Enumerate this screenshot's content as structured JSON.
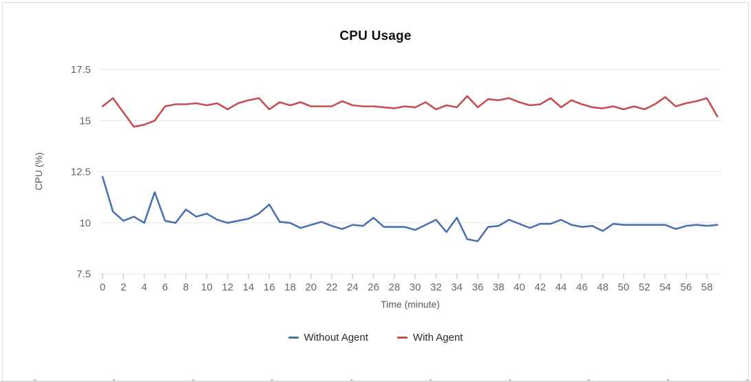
{
  "title": "CPU Usage",
  "axes": {
    "x_label": "Time (minute)",
    "y_label": "CPU (%)"
  },
  "legend": {
    "items": [
      {
        "label": "Without Agent",
        "color": "#4C72B0"
      },
      {
        "label": "With Agent",
        "color": "#C44E52"
      }
    ]
  },
  "colors": {
    "without_agent": "#4C72B0",
    "with_agent": "#C44E52",
    "gridline": "#e5e5e5",
    "axis_tick": "#c8cfdf",
    "tick_label": "#666666"
  },
  "chart_data": {
    "type": "line",
    "title": "CPU Usage",
    "xlabel": "Time (minute)",
    "ylabel": "CPU (%)",
    "xlim": [
      0,
      59
    ],
    "ylim": [
      7.5,
      17.5
    ],
    "y_ticks": [
      17.5,
      15,
      12.5,
      10,
      7.5
    ],
    "x_ticks": [
      0,
      2,
      4,
      6,
      8,
      10,
      12,
      14,
      16,
      18,
      20,
      22,
      24,
      26,
      28,
      30,
      32,
      34,
      36,
      38,
      40,
      42,
      44,
      46,
      48,
      50,
      52,
      54,
      56,
      58
    ],
    "grid": true,
    "legend_position": "bottom",
    "x": [
      0,
      1,
      2,
      3,
      4,
      5,
      6,
      7,
      8,
      9,
      10,
      11,
      12,
      13,
      14,
      15,
      16,
      17,
      18,
      19,
      20,
      21,
      22,
      23,
      24,
      25,
      26,
      27,
      28,
      29,
      30,
      31,
      32,
      33,
      34,
      35,
      36,
      37,
      38,
      39,
      40,
      41,
      42,
      43,
      44,
      45,
      46,
      47,
      48,
      49,
      50,
      51,
      52,
      53,
      54,
      55,
      56,
      57,
      58,
      59
    ],
    "series": [
      {
        "name": "Without Agent",
        "color": "#4C72B0",
        "values": [
          12.25,
          10.55,
          10.1,
          10.3,
          10.0,
          11.5,
          10.1,
          10.0,
          10.65,
          10.3,
          10.45,
          10.15,
          10.0,
          10.1,
          10.2,
          10.45,
          10.9,
          10.05,
          10.0,
          9.75,
          9.9,
          10.05,
          9.85,
          9.7,
          9.9,
          9.85,
          10.25,
          9.8,
          9.8,
          9.8,
          9.65,
          9.9,
          10.15,
          9.55,
          10.25,
          9.2,
          9.1,
          9.8,
          9.85,
          10.15,
          9.95,
          9.75,
          9.95,
          9.95,
          10.15,
          9.9,
          9.8,
          9.85,
          9.6,
          9.95,
          9.9,
          9.9,
          9.9,
          9.9,
          9.9,
          9.7,
          9.85,
          9.9,
          9.85,
          9.9
        ]
      },
      {
        "name": "With Agent",
        "color": "#C44E52",
        "values": [
          15.7,
          16.1,
          15.4,
          14.7,
          14.8,
          15.0,
          15.7,
          15.8,
          15.8,
          15.85,
          15.75,
          15.85,
          15.55,
          15.85,
          16.0,
          16.1,
          15.55,
          15.9,
          15.75,
          15.9,
          15.7,
          15.7,
          15.7,
          15.95,
          15.75,
          15.7,
          15.7,
          15.65,
          15.6,
          15.7,
          15.65,
          15.9,
          15.55,
          15.75,
          15.65,
          16.2,
          15.65,
          16.05,
          16.0,
          16.1,
          15.9,
          15.75,
          15.8,
          16.1,
          15.65,
          16.0,
          15.8,
          15.65,
          15.6,
          15.7,
          15.55,
          15.7,
          15.55,
          15.8,
          16.15,
          15.7,
          15.85,
          15.95,
          16.1,
          15.2
        ]
      }
    ]
  }
}
